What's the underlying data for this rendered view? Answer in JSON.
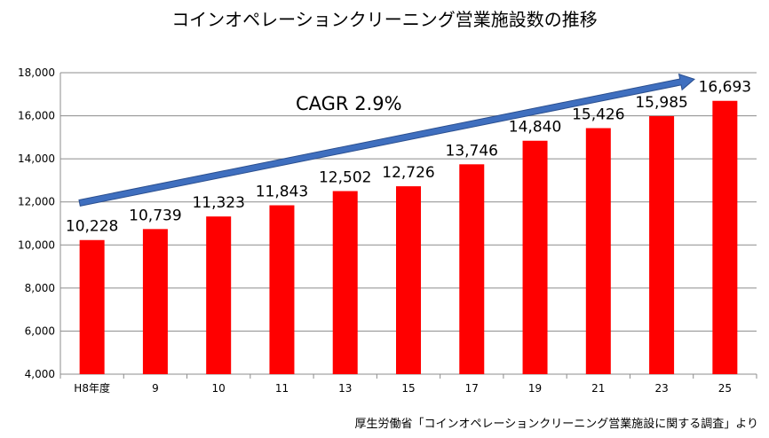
{
  "chart_data": {
    "type": "bar",
    "title": "コインオペレーションクリーニング営業施設数の推移",
    "categories": [
      "H8年度",
      "9",
      "10",
      "11",
      "13",
      "15",
      "17",
      "19",
      "21",
      "23",
      "25"
    ],
    "values": [
      10228,
      10739,
      11323,
      11843,
      12502,
      12726,
      13746,
      14840,
      15426,
      15985,
      16693
    ],
    "data_labels": [
      "10,228",
      "10,739",
      "11,323",
      "11,843",
      "12,502",
      "12,726",
      "13,746",
      "14,840",
      "15,426",
      "15,985",
      "16,693"
    ],
    "ylim": [
      4000,
      18000
    ],
    "yticks": [
      4000,
      6000,
      8000,
      10000,
      12000,
      14000,
      16000,
      18000
    ],
    "ytick_labels": [
      "4,000",
      "6,000",
      "8,000",
      "10,000",
      "12,000",
      "14,000",
      "16,000",
      "18,000"
    ],
    "xlabel": "",
    "ylabel": "",
    "grid": true,
    "bar_color": "#ff0000",
    "annotation": {
      "text": "CAGR 2.9%",
      "arrow_color": "#3f6fbf"
    },
    "source": "厚生労働省「コインオペレーションクリーニング営業施設に関する調査」より"
  }
}
